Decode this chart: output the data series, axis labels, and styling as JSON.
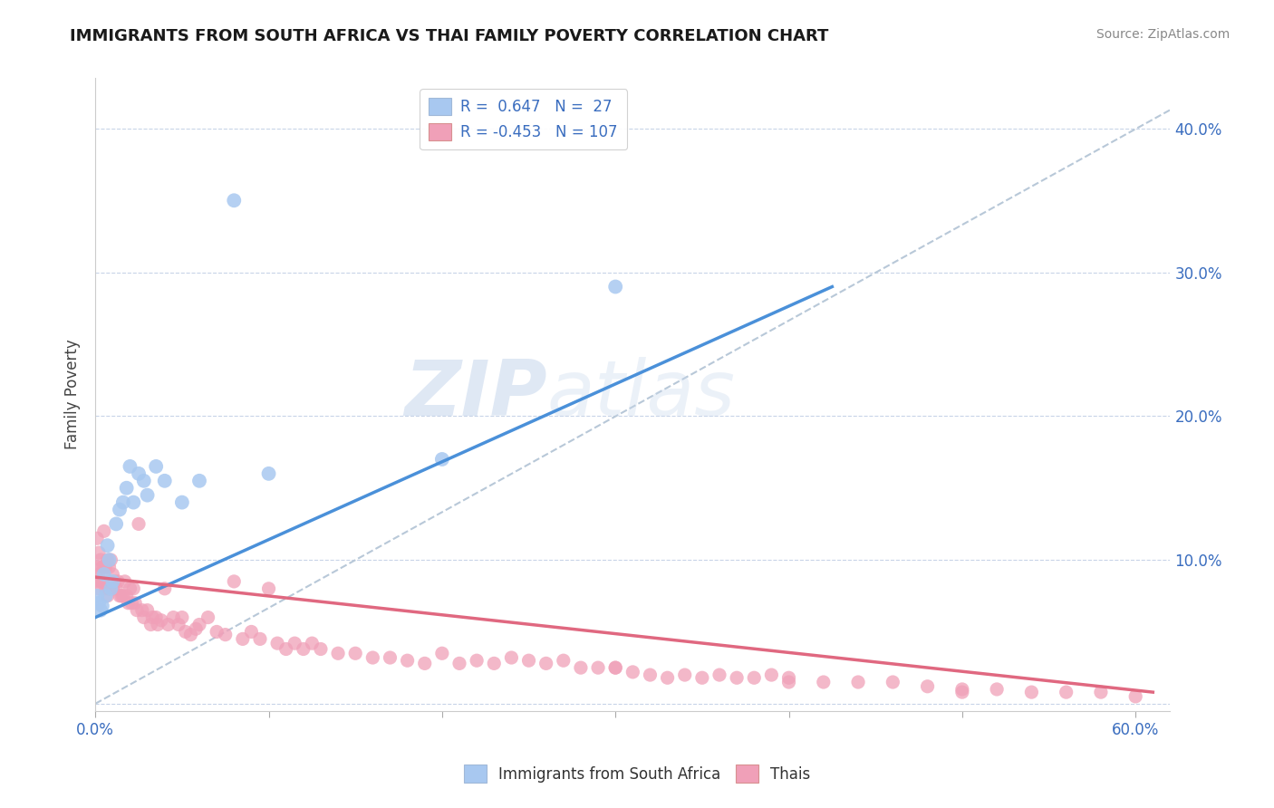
{
  "title": "IMMIGRANTS FROM SOUTH AFRICA VS THAI FAMILY POVERTY CORRELATION CHART",
  "source": "Source: ZipAtlas.com",
  "ylabel": "Family Poverty",
  "xlim": [
    0.0,
    0.62
  ],
  "ylim": [
    -0.005,
    0.435
  ],
  "background_color": "#ffffff",
  "grid_color": "#c8d4e8",
  "color_blue": "#a8c8f0",
  "color_pink": "#f0a0b8",
  "line_blue": "#4a90d9",
  "line_pink": "#e06880",
  "line_dash": "#b8c8d8",
  "blue_scatter_x": [
    0.001,
    0.002,
    0.003,
    0.004,
    0.005,
    0.006,
    0.007,
    0.008,
    0.009,
    0.01,
    0.012,
    0.014,
    0.016,
    0.018,
    0.02,
    0.022,
    0.025,
    0.028,
    0.03,
    0.035,
    0.04,
    0.05,
    0.06,
    0.08,
    0.1,
    0.2,
    0.3
  ],
  "blue_scatter_y": [
    0.075,
    0.07,
    0.065,
    0.068,
    0.09,
    0.075,
    0.11,
    0.1,
    0.08,
    0.085,
    0.125,
    0.135,
    0.14,
    0.15,
    0.165,
    0.14,
    0.16,
    0.155,
    0.145,
    0.165,
    0.155,
    0.14,
    0.155,
    0.35,
    0.16,
    0.17,
    0.29
  ],
  "pink_scatter_x": [
    0.001,
    0.001,
    0.001,
    0.002,
    0.002,
    0.002,
    0.003,
    0.003,
    0.004,
    0.004,
    0.005,
    0.005,
    0.006,
    0.006,
    0.007,
    0.007,
    0.008,
    0.008,
    0.009,
    0.01,
    0.01,
    0.011,
    0.012,
    0.013,
    0.014,
    0.015,
    0.016,
    0.017,
    0.018,
    0.019,
    0.02,
    0.021,
    0.022,
    0.023,
    0.024,
    0.025,
    0.027,
    0.028,
    0.03,
    0.032,
    0.033,
    0.035,
    0.036,
    0.038,
    0.04,
    0.042,
    0.045,
    0.048,
    0.05,
    0.052,
    0.055,
    0.058,
    0.06,
    0.065,
    0.07,
    0.075,
    0.08,
    0.085,
    0.09,
    0.095,
    0.1,
    0.105,
    0.11,
    0.115,
    0.12,
    0.125,
    0.13,
    0.14,
    0.15,
    0.16,
    0.17,
    0.18,
    0.19,
    0.2,
    0.21,
    0.22,
    0.23,
    0.24,
    0.25,
    0.26,
    0.27,
    0.28,
    0.29,
    0.3,
    0.31,
    0.32,
    0.33,
    0.34,
    0.35,
    0.36,
    0.37,
    0.38,
    0.39,
    0.4,
    0.42,
    0.44,
    0.46,
    0.48,
    0.5,
    0.52,
    0.54,
    0.56,
    0.58,
    0.6,
    0.3,
    0.4,
    0.5
  ],
  "pink_scatter_y": [
    0.115,
    0.095,
    0.085,
    0.105,
    0.09,
    0.08,
    0.1,
    0.085,
    0.095,
    0.085,
    0.12,
    0.095,
    0.095,
    0.08,
    0.1,
    0.075,
    0.095,
    0.08,
    0.1,
    0.09,
    0.08,
    0.085,
    0.08,
    0.085,
    0.075,
    0.075,
    0.075,
    0.085,
    0.075,
    0.07,
    0.08,
    0.07,
    0.08,
    0.07,
    0.065,
    0.125,
    0.065,
    0.06,
    0.065,
    0.055,
    0.06,
    0.06,
    0.055,
    0.058,
    0.08,
    0.055,
    0.06,
    0.055,
    0.06,
    0.05,
    0.048,
    0.052,
    0.055,
    0.06,
    0.05,
    0.048,
    0.085,
    0.045,
    0.05,
    0.045,
    0.08,
    0.042,
    0.038,
    0.042,
    0.038,
    0.042,
    0.038,
    0.035,
    0.035,
    0.032,
    0.032,
    0.03,
    0.028,
    0.035,
    0.028,
    0.03,
    0.028,
    0.032,
    0.03,
    0.028,
    0.03,
    0.025,
    0.025,
    0.025,
    0.022,
    0.02,
    0.018,
    0.02,
    0.018,
    0.02,
    0.018,
    0.018,
    0.02,
    0.018,
    0.015,
    0.015,
    0.015,
    0.012,
    0.01,
    0.01,
    0.008,
    0.008,
    0.008,
    0.005,
    0.025,
    0.015,
    0.008
  ],
  "blue_line_x": [
    0.0,
    0.425
  ],
  "blue_line_y": [
    0.06,
    0.29
  ],
  "pink_line_x": [
    0.0,
    0.61
  ],
  "pink_line_y": [
    0.088,
    0.008
  ],
  "dash_line_x": [
    0.0,
    0.62
  ],
  "dash_line_y": [
    0.0,
    0.413
  ]
}
